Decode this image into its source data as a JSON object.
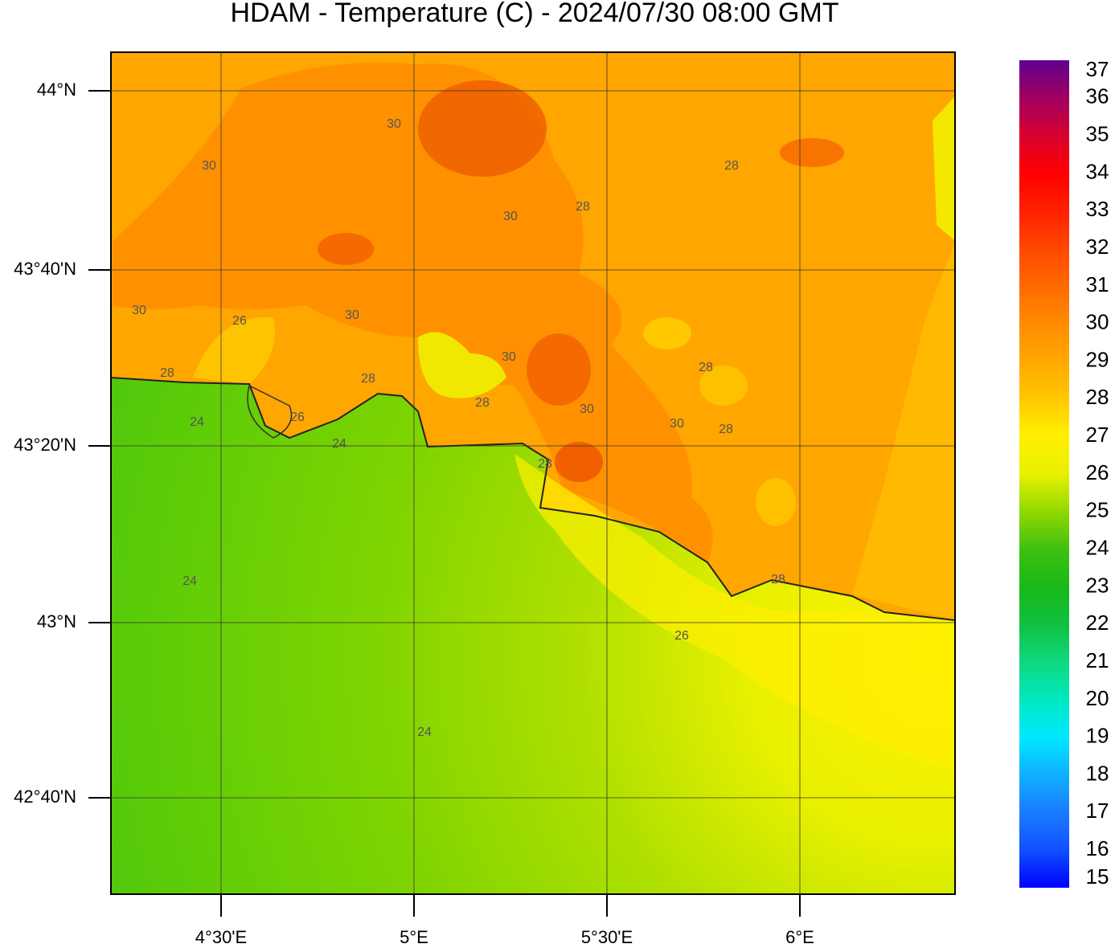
{
  "title": "HDAM - Temperature (C)  -  2024/07/30  08:00 GMT",
  "lat_labels": [
    "44°N",
    "43°40'N",
    "43°20'N",
    "43°N",
    "42°40'N"
  ],
  "lon_labels": [
    "4°30'E",
    "5°E",
    "5°30'E",
    "6°E"
  ],
  "colorbar": {
    "range": [
      15,
      37
    ],
    "ticks": [
      15,
      16,
      17,
      18,
      19,
      20,
      21,
      22,
      23,
      24,
      25,
      26,
      27,
      28,
      29,
      30,
      31,
      32,
      33,
      34,
      35,
      36,
      37
    ],
    "colors": [
      "#0000ff",
      "#1050ff",
      "#1a7cff",
      "#10b0ff",
      "#00e8ff",
      "#00e8c0",
      "#10d880",
      "#10c040",
      "#18b818",
      "#40c010",
      "#90d800",
      "#e8f000",
      "#fff000",
      "#ffc800",
      "#ffa800",
      "#ff8c00",
      "#ff6a00",
      "#ff4800",
      "#ff2000",
      "#ff0000",
      "#d80030",
      "#a00060",
      "#600090"
    ]
  },
  "contour_labels": [
    "30",
    "30",
    "28",
    "30",
    "28",
    "30",
    "26",
    "30",
    "30",
    "28",
    "28",
    "28",
    "28",
    "30",
    "24",
    "26",
    "30",
    "28",
    "24",
    "28",
    "24",
    "28",
    "26",
    "24"
  ]
}
